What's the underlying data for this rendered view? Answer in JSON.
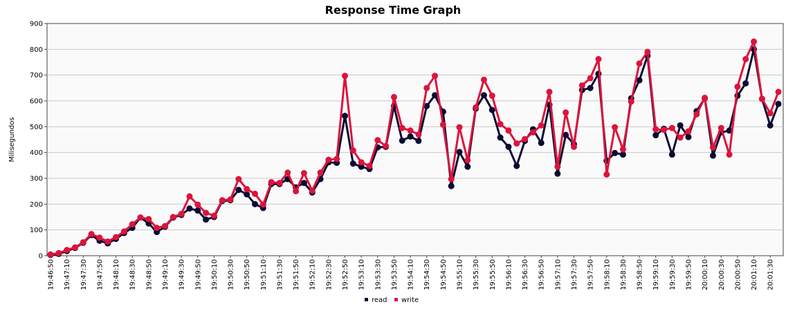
{
  "chart_data": {
    "type": "line",
    "title": "Response Time Graph",
    "xlabel": "",
    "ylabel": "Milisegundos",
    "ylim": [
      0,
      900
    ],
    "yticks": [
      0,
      100,
      200,
      300,
      400,
      500,
      600,
      700,
      800,
      900
    ],
    "x_tick_labels": [
      "19:46:50",
      "19:47:10",
      "19:47:30",
      "19:47:50",
      "19:48:10",
      "19:48:30",
      "19:48:50",
      "19:49:10",
      "19:49:30",
      "19:49:50",
      "19:50:10",
      "19:50:30",
      "19:50:50",
      "19:51:10",
      "19:51:30",
      "19:51:50",
      "19:52:10",
      "19:52:30",
      "19:52:50",
      "19:53:10",
      "19:53:30",
      "19:53:50",
      "19:54:10",
      "19:54:30",
      "19:54:50",
      "19:55:10",
      "19:55:30",
      "19:55:50",
      "19:56:10",
      "19:56:30",
      "19:56:50",
      "19:57:10",
      "19:57:30",
      "19:57:50",
      "19:58:10",
      "19:58:30",
      "19:58:50",
      "19:59:10",
      "19:59:30",
      "19:59:50",
      "20:00:10",
      "20:00:30",
      "20:00:50",
      "20:01:10",
      "20:01:30"
    ],
    "grid": true,
    "legend_position": "bottom-center",
    "colors": {
      "read": "#0a0a33",
      "write": "#dc143c"
    },
    "series": [
      {
        "name": "read",
        "values": [
          3,
          7,
          18,
          30,
          50,
          80,
          58,
          48,
          65,
          88,
          108,
          148,
          125,
          92,
          112,
          148,
          158,
          183,
          175,
          140,
          150,
          212,
          215,
          255,
          238,
          200,
          185,
          278,
          278,
          297,
          265,
          282,
          245,
          297,
          362,
          360,
          542,
          357,
          345,
          336,
          420,
          422,
          580,
          446,
          462,
          445,
          580,
          622,
          558,
          270,
          402,
          345,
          570,
          622,
          565,
          458,
          422,
          348,
          445,
          490,
          437,
          585,
          318,
          468,
          432,
          642,
          650,
          705,
          368,
          398,
          392,
          610,
          680,
          775,
          467,
          492,
          392,
          505,
          460,
          560,
          610,
          388,
          478,
          485,
          620,
          668,
          800,
          608,
          505,
          588
        ]
      },
      {
        "name": "write",
        "values": [
          5,
          10,
          22,
          32,
          52,
          84,
          70,
          55,
          72,
          94,
          122,
          148,
          142,
          108,
          115,
          150,
          162,
          230,
          198,
          166,
          155,
          215,
          218,
          297,
          258,
          240,
          198,
          285,
          282,
          322,
          250,
          320,
          252,
          322,
          372,
          375,
          697,
          408,
          362,
          348,
          448,
          425,
          615,
          495,
          485,
          470,
          650,
          697,
          508,
          297,
          498,
          370,
          575,
          682,
          620,
          510,
          485,
          435,
          452,
          478,
          505,
          635,
          345,
          555,
          422,
          660,
          688,
          762,
          315,
          498,
          412,
          597,
          745,
          790,
          490,
          488,
          495,
          458,
          482,
          548,
          612,
          420,
          495,
          392,
          655,
          762,
          830,
          608,
          552,
          635
        ]
      }
    ]
  }
}
